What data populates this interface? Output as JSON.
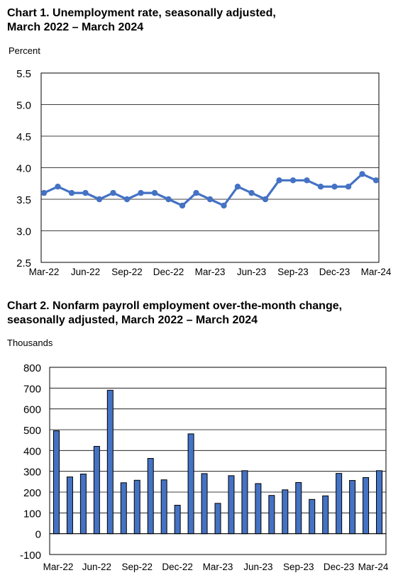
{
  "chart_data": [
    {
      "type": "line",
      "title_lines": [
        "Chart 1. Unemployment rate, seasonally adjusted,",
        "March 2022 – March 2024"
      ],
      "ylabel": "Percent",
      "ylim": [
        2.5,
        5.5
      ],
      "yticks": [
        "5.5",
        "5.0",
        "4.5",
        "4.0",
        "3.5",
        "3.0",
        "2.5"
      ],
      "xtick_labels": [
        "Mar-22",
        "Jun-22",
        "Sep-22",
        "Dec-22",
        "Mar-23",
        "Jun-23",
        "Sep-23",
        "Dec-23",
        "Mar-24"
      ],
      "grid": true,
      "color": "#4472c4",
      "values": [
        3.6,
        3.7,
        3.6,
        3.6,
        3.5,
        3.6,
        3.5,
        3.6,
        3.6,
        3.5,
        3.4,
        3.6,
        3.5,
        3.4,
        3.7,
        3.6,
        3.5,
        3.8,
        3.8,
        3.8,
        3.7,
        3.7,
        3.7,
        3.9,
        3.8
      ]
    },
    {
      "type": "bar",
      "title_lines": [
        "Chart 2. Nonfarm payroll employment over-the-month change,",
        "seasonally adjusted, March 2022 – March 2024"
      ],
      "ylabel": "Thousands",
      "ylim": [
        -100,
        800
      ],
      "yticks": [
        "800",
        "700",
        "600",
        "500",
        "400",
        "300",
        "200",
        "100",
        "0",
        "-100"
      ],
      "xtick_labels": [
        "Mar-22",
        "Jun-22",
        "Sep-22",
        "Dec-22",
        "Mar-23",
        "Jun-23",
        "Sep-23",
        "Dec-23",
        "Mar-24"
      ],
      "grid": true,
      "color": "#4472c4",
      "values": [
        495,
        273,
        287,
        420,
        690,
        245,
        257,
        362,
        259,
        137,
        480,
        289,
        146,
        279,
        303,
        241,
        184,
        211,
        246,
        165,
        182,
        290,
        256,
        270,
        303
      ]
    }
  ]
}
